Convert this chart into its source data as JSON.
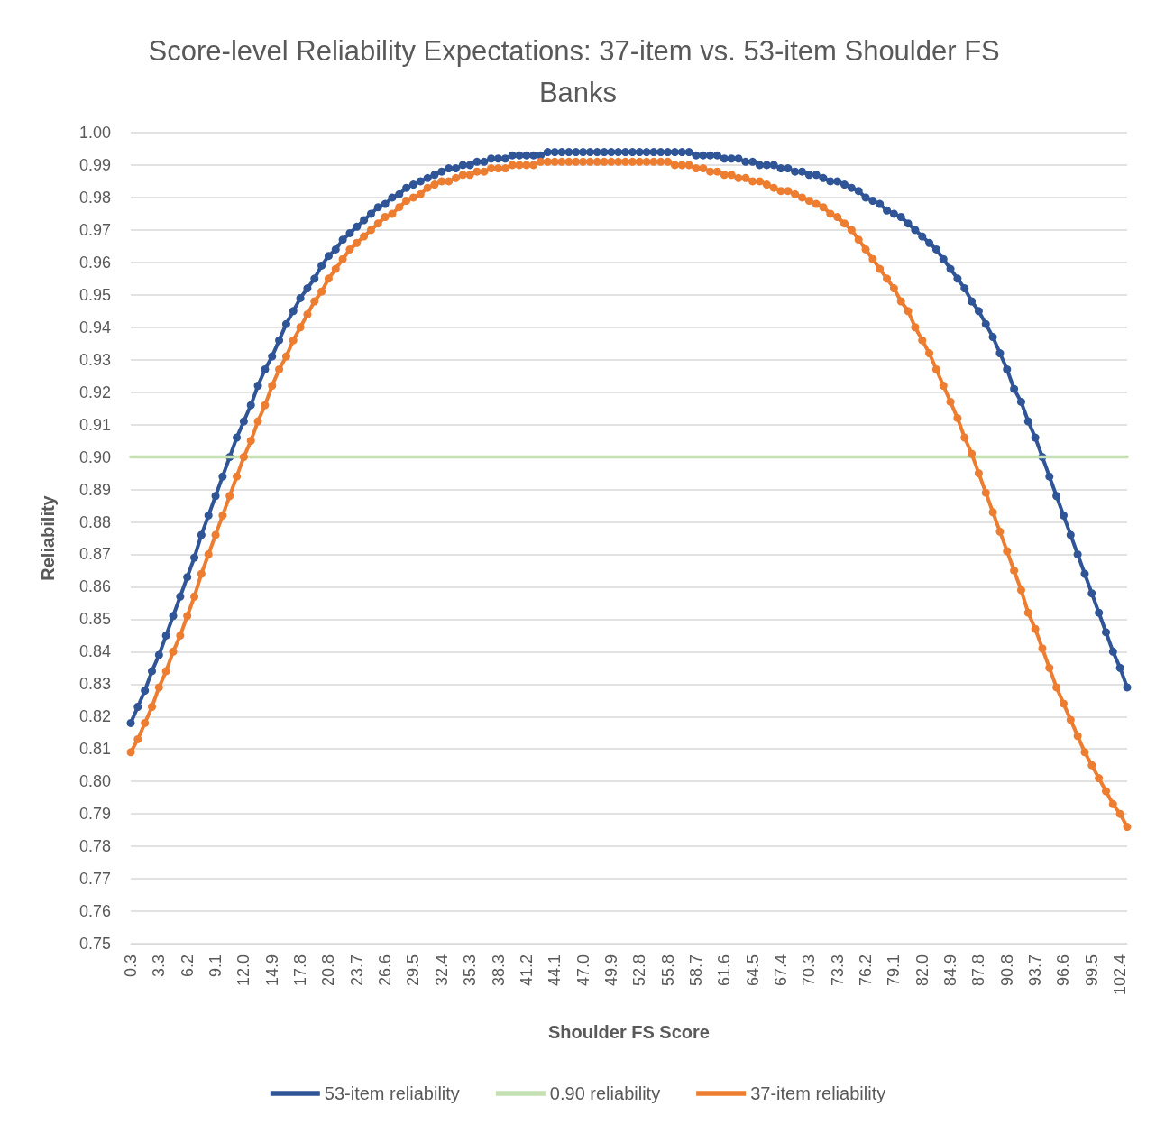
{
  "chart_data": {
    "type": "line",
    "title": "Score-level Reliability Expectations: 37-item vs. 53-item Shoulder FS Banks",
    "xlabel": "Shoulder FS Score",
    "ylabel": "Reliability",
    "categories": [
      "0.3",
      null,
      null,
      null,
      "3.3",
      null,
      null,
      null,
      "6.2",
      null,
      null,
      null,
      "9.1",
      null,
      null,
      null,
      "12.0",
      null,
      null,
      null,
      "14.9",
      null,
      null,
      null,
      "17.8",
      null,
      null,
      null,
      "20.8",
      null,
      null,
      null,
      "23.7",
      null,
      null,
      null,
      "26.6",
      null,
      null,
      null,
      "29.5",
      null,
      null,
      null,
      "32.4",
      null,
      null,
      null,
      "35.3",
      null,
      null,
      null,
      "38.3",
      null,
      null,
      null,
      "41.2",
      null,
      null,
      null,
      "44.1",
      null,
      null,
      null,
      "47.0",
      null,
      null,
      null,
      "49.9",
      null,
      null,
      null,
      "52.8",
      null,
      null,
      null,
      "55.8",
      null,
      null,
      null,
      "58.7",
      null,
      null,
      null,
      "61.6",
      null,
      null,
      null,
      "64.5",
      null,
      null,
      null,
      "67.4",
      null,
      null,
      null,
      "70.3",
      null,
      null,
      null,
      "73.3",
      null,
      null,
      null,
      "76.2",
      null,
      null,
      null,
      "79.1",
      null,
      null,
      null,
      "82.0",
      null,
      null,
      null,
      "84.9",
      null,
      null,
      null,
      "87.8",
      null,
      null,
      null,
      "90.8",
      null,
      null,
      null,
      "93.7",
      null,
      null,
      null,
      "96.6",
      null,
      null,
      null,
      "99.5",
      null,
      null,
      null,
      "102.4",
      null
    ],
    "series": [
      {
        "name": "53-item reliability",
        "color": "#2f5597",
        "values": [
          0.818,
          0.823,
          0.828,
          0.834,
          0.839,
          0.845,
          0.851,
          0.857,
          0.863,
          0.869,
          0.876,
          0.882,
          0.888,
          0.894,
          0.9,
          0.906,
          0.911,
          0.916,
          0.922,
          0.927,
          0.931,
          0.936,
          0.941,
          0.945,
          0.949,
          0.952,
          0.955,
          0.959,
          0.962,
          0.964,
          0.967,
          0.969,
          0.971,
          0.973,
          0.975,
          0.977,
          0.978,
          0.98,
          0.981,
          0.983,
          0.984,
          0.985,
          0.986,
          0.987,
          0.988,
          0.989,
          0.989,
          0.99,
          0.99,
          0.991,
          0.991,
          0.992,
          0.992,
          0.992,
          0.993,
          0.993,
          0.993,
          0.993,
          0.993,
          0.994,
          0.994,
          0.994,
          0.994,
          0.994,
          0.994,
          0.994,
          0.994,
          0.994,
          0.994,
          0.994,
          0.994,
          0.994,
          0.994,
          0.994,
          0.994,
          0.994,
          0.994,
          0.994,
          0.994,
          0.994,
          0.993,
          0.993,
          0.993,
          0.993,
          0.992,
          0.992,
          0.992,
          0.991,
          0.991,
          0.99,
          0.99,
          0.99,
          0.989,
          0.989,
          0.988,
          0.988,
          0.987,
          0.987,
          0.986,
          0.985,
          0.985,
          0.984,
          0.983,
          0.982,
          0.98,
          0.979,
          0.978,
          0.976,
          0.975,
          0.974,
          0.972,
          0.97,
          0.968,
          0.966,
          0.964,
          0.961,
          0.958,
          0.955,
          0.952,
          0.948,
          0.945,
          0.941,
          0.937,
          0.932,
          0.927,
          0.921,
          0.917,
          0.911,
          0.906,
          0.9,
          0.894,
          0.888,
          0.882,
          0.876,
          0.87,
          0.864,
          0.858,
          0.852,
          0.846,
          0.84,
          0.835,
          0.829
        ]
      },
      {
        "name": "0.90 reliability",
        "color": "#c5e0b4",
        "marker": "none",
        "values": [
          0.9,
          0.9,
          0.9,
          0.9,
          0.9,
          0.9,
          0.9,
          0.9,
          0.9,
          0.9,
          0.9,
          0.9,
          0.9,
          0.9,
          0.9,
          0.9,
          0.9,
          0.9,
          0.9,
          0.9,
          0.9,
          0.9,
          0.9,
          0.9,
          0.9,
          0.9,
          0.9,
          0.9,
          0.9,
          0.9,
          0.9,
          0.9,
          0.9,
          0.9,
          0.9,
          0.9,
          0.9,
          0.9,
          0.9,
          0.9,
          0.9,
          0.9,
          0.9,
          0.9,
          0.9,
          0.9,
          0.9,
          0.9,
          0.9,
          0.9,
          0.9,
          0.9,
          0.9,
          0.9,
          0.9,
          0.9,
          0.9,
          0.9,
          0.9,
          0.9,
          0.9,
          0.9,
          0.9,
          0.9,
          0.9,
          0.9,
          0.9,
          0.9,
          0.9,
          0.9,
          0.9,
          0.9,
          0.9,
          0.9,
          0.9,
          0.9,
          0.9,
          0.9,
          0.9,
          0.9,
          0.9,
          0.9,
          0.9,
          0.9,
          0.9,
          0.9,
          0.9,
          0.9,
          0.9,
          0.9,
          0.9,
          0.9,
          0.9,
          0.9,
          0.9,
          0.9,
          0.9,
          0.9,
          0.9,
          0.9,
          0.9,
          0.9,
          0.9,
          0.9,
          0.9,
          0.9,
          0.9,
          0.9,
          0.9,
          0.9,
          0.9,
          0.9,
          0.9,
          0.9,
          0.9,
          0.9,
          0.9,
          0.9,
          0.9,
          0.9,
          0.9,
          0.9,
          0.9,
          0.9,
          0.9,
          0.9,
          0.9,
          0.9,
          0.9,
          0.9,
          0.9,
          0.9,
          0.9,
          0.9,
          0.9,
          0.9,
          0.9,
          0.9,
          0.9,
          0.9,
          0.9,
          0.9
        ]
      },
      {
        "name": "37-item reliability",
        "color": "#ed7d31",
        "values": [
          0.809,
          0.813,
          0.818,
          0.823,
          0.829,
          0.834,
          0.84,
          0.845,
          0.851,
          0.857,
          0.864,
          0.87,
          0.876,
          0.882,
          0.888,
          0.894,
          0.9,
          0.905,
          0.911,
          0.916,
          0.922,
          0.927,
          0.931,
          0.936,
          0.94,
          0.944,
          0.948,
          0.951,
          0.955,
          0.958,
          0.961,
          0.964,
          0.966,
          0.968,
          0.97,
          0.972,
          0.974,
          0.975,
          0.977,
          0.979,
          0.98,
          0.981,
          0.983,
          0.984,
          0.985,
          0.985,
          0.986,
          0.987,
          0.987,
          0.988,
          0.988,
          0.989,
          0.989,
          0.989,
          0.99,
          0.99,
          0.99,
          0.99,
          0.991,
          0.991,
          0.991,
          0.991,
          0.991,
          0.991,
          0.991,
          0.991,
          0.991,
          0.991,
          0.991,
          0.991,
          0.991,
          0.991,
          0.991,
          0.991,
          0.991,
          0.991,
          0.991,
          0.99,
          0.99,
          0.99,
          0.989,
          0.989,
          0.988,
          0.988,
          0.987,
          0.987,
          0.986,
          0.986,
          0.985,
          0.985,
          0.984,
          0.983,
          0.982,
          0.982,
          0.981,
          0.98,
          0.979,
          0.978,
          0.977,
          0.975,
          0.974,
          0.972,
          0.97,
          0.967,
          0.964,
          0.961,
          0.958,
          0.955,
          0.952,
          0.948,
          0.945,
          0.94,
          0.936,
          0.932,
          0.927,
          0.922,
          0.917,
          0.912,
          0.906,
          0.901,
          0.895,
          0.889,
          0.883,
          0.877,
          0.871,
          0.865,
          0.859,
          0.852,
          0.847,
          0.841,
          0.835,
          0.829,
          0.824,
          0.819,
          0.814,
          0.809,
          0.805,
          0.801,
          0.797,
          0.793,
          0.79,
          0.786
        ]
      }
    ],
    "ylim": [
      0.75,
      1.0
    ],
    "yticks": [
      {
        "value": 0.75,
        "label": "0.75"
      },
      {
        "value": 0.76,
        "label": "0.76"
      },
      {
        "value": 0.77,
        "label": "0.77"
      },
      {
        "value": 0.78,
        "label": "0.78"
      },
      {
        "value": 0.79,
        "label": "0.79"
      },
      {
        "value": 0.8,
        "label": "0.80"
      },
      {
        "value": 0.81,
        "label": "0.81"
      },
      {
        "value": 0.82,
        "label": "0.82"
      },
      {
        "value": 0.83,
        "label": "0.83"
      },
      {
        "value": 0.84,
        "label": "0.84"
      },
      {
        "value": 0.85,
        "label": "0.85"
      },
      {
        "value": 0.86,
        "label": "0.86"
      },
      {
        "value": 0.87,
        "label": "0.87"
      },
      {
        "value": 0.88,
        "label": "0.88"
      },
      {
        "value": 0.89,
        "label": "0.89"
      },
      {
        "value": 0.9,
        "label": "0.90"
      },
      {
        "value": 0.91,
        "label": "0.91"
      },
      {
        "value": 0.92,
        "label": "0.92"
      },
      {
        "value": 0.93,
        "label": "0.93"
      },
      {
        "value": 0.94,
        "label": "0.94"
      },
      {
        "value": 0.95,
        "label": "0.95"
      },
      {
        "value": 0.96,
        "label": "0.96"
      },
      {
        "value": 0.97,
        "label": "0.97"
      },
      {
        "value": 0.98,
        "label": "0.98"
      },
      {
        "value": 0.99,
        "label": "0.99"
      },
      {
        "value": 1.0,
        "label": "1.00"
      }
    ],
    "grid": "y",
    "legend": "bottom",
    "marker": "circle",
    "line_style": "solid"
  }
}
